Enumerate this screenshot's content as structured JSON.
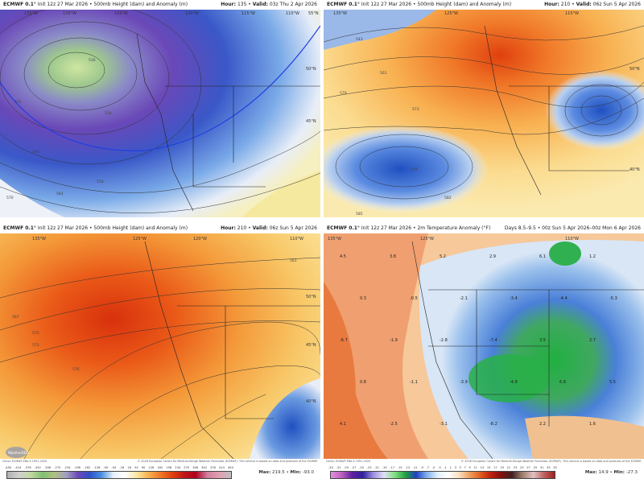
{
  "panels": [
    {
      "model": "ECMWF 0.1°",
      "init": "Init 12z 27 Mar 2026",
      "field": "500mb Height (dam) and Anomaly (m)",
      "hour_label": "Hour:",
      "hour": "135",
      "valid_label": "Valid:",
      "valid": "03z Thu 2 Apr 2026",
      "contours": [
        "516",
        "525",
        "531",
        "534",
        "537",
        "540",
        "546",
        "552",
        "558",
        "564",
        "567",
        "570"
      ]
    },
    {
      "model": "ECMWF 0.1°",
      "init": "Init 12z 27 Mar 2026",
      "field": "500mb Height (dam) and Anomaly (m)",
      "hour_label": "Hour:",
      "hour": "210",
      "valid_label": "Valid:",
      "valid": "06z Sun 5 Apr 2026",
      "contours": [
        "537",
        "543",
        "546",
        "561",
        "570",
        "573",
        "576",
        "579",
        "582",
        "585"
      ]
    },
    {
      "model": "ECMWF 0.1°",
      "init": "Init 12z 27 Mar 2026",
      "field": "500mb Height (dam) and Anomaly (m)",
      "hour_label": "Hour:",
      "hour": "210",
      "valid_label": "Valid:",
      "valid": "06z Sun 5 Apr 2026",
      "contours": [
        "561",
        "567",
        "570",
        "573",
        "576",
        "579",
        "582"
      ],
      "climo": "Climo: ECMWF ERA-5 1991-2020",
      "copyright": "© 2026 European Centre for Medium-Range Weather Forecasts (ECMWF). This service is based on data and products of the ECMWF.",
      "colorbar_ticks": [
        "-450",
        "-414",
        "-378",
        "-342",
        "-306",
        "-270",
        "-234",
        "-198",
        "-162",
        "-126",
        "-90",
        "-54",
        "-18",
        "18",
        "54",
        "90",
        "126",
        "162",
        "198",
        "234",
        "270",
        "306",
        "342",
        "378",
        "414",
        "450"
      ],
      "max_label": "Max:",
      "max": "219.5",
      "min_label": "Min:",
      "min": "-93.0",
      "logo": "WeatherBELL"
    },
    {
      "model": "ECMWF 0.1°",
      "init": "Init 12z 27 Mar 2026",
      "field": "2m Temperature Anomaly (°F)",
      "days": "Days 8.5–9.5",
      "valid": "00z Sun 5 Apr 2026–00z Mon 6 Apr 2026",
      "values": [
        "4.5",
        "3.8",
        "5.2",
        "2.9",
        "6.1",
        "1.2",
        "0.3",
        "-0.5",
        "-2.1",
        "-3.4",
        "-4.4",
        "-5.3",
        "-6.7",
        "-1.9",
        "-2.8",
        "-7.4",
        "3.5",
        "2.7",
        "0.8",
        "-1.1",
        "-3.9",
        "-4.8",
        "6.8",
        "5.5",
        "4.1",
        "-2.5",
        "-3.1",
        "-8.2",
        "2.2",
        "1.6"
      ],
      "climo": "Climo: ECMWF ERA-5 1991-2020",
      "copyright": "© 2026 European Centre for Medium-Range Weather Forecasts (ECMWF). This service is based on data and products of the ECMWF.",
      "colorbar_ticks": [
        "-33",
        "-31",
        "-29",
        "-27",
        "-25",
        "-23",
        "-21",
        "-19",
        "-17",
        "-15",
        "-13",
        "-11",
        "-9",
        "-7",
        "-5",
        "-3",
        "-1",
        "1",
        "3",
        "5",
        "7",
        "9",
        "11",
        "13",
        "15",
        "17",
        "19",
        "21",
        "23",
        "25",
        "27",
        "29",
        "31",
        "33",
        "35"
      ],
      "max_label": "Max:",
      "max": "14.9",
      "min_label": "Min:",
      "min": "-27.3"
    }
  ],
  "longitudes": [
    "135°W",
    "130°W",
    "125°W",
    "120°W",
    "115°W",
    "110°W"
  ],
  "latitudes": [
    "55°N",
    "50°N",
    "45°N",
    "40°N"
  ],
  "colors": {
    "low_anomaly": "#3050c8",
    "high_anomaly": "#e04010",
    "warm_temp": "#f07a30",
    "cold_temp": "#4a80d8",
    "very_cold": "#20b040"
  }
}
